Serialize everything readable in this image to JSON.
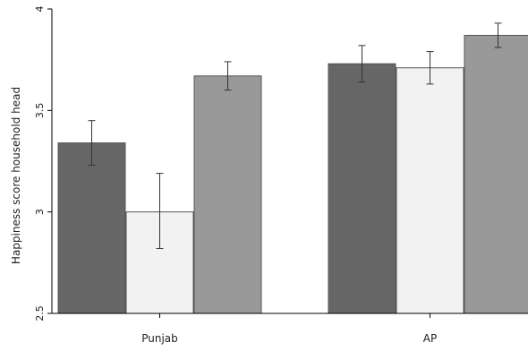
{
  "chart_data": {
    "type": "bar",
    "categories": [
      "Punjab",
      "AP"
    ],
    "series": [
      {
        "color": "#666666",
        "values": [
          3.34,
          3.73
        ],
        "error_low": [
          3.23,
          3.64
        ],
        "error_high": [
          3.45,
          3.82
        ]
      },
      {
        "color": "#f2f2f2",
        "values": [
          3.0,
          3.71
        ],
        "error_low": [
          2.82,
          3.63
        ],
        "error_high": [
          3.19,
          3.79
        ]
      },
      {
        "color": "#999999",
        "values": [
          3.67,
          3.87
        ],
        "error_low": [
          3.6,
          3.81
        ],
        "error_high": [
          3.74,
          3.93
        ]
      }
    ],
    "ylabel": "Happiness score household head",
    "ylim": [
      2.5,
      4
    ],
    "yticks": [
      2.5,
      3,
      3.5,
      4
    ],
    "ytick_labels": [
      "2.5",
      "3",
      "3.5",
      "4"
    ],
    "grid": false,
    "error_bars": true
  }
}
